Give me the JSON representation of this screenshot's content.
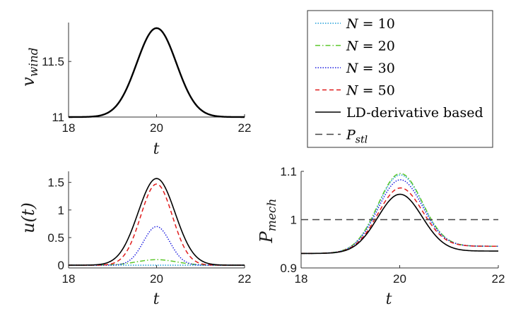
{
  "colors": {
    "n10": "#1f9ed8",
    "n20": "#5cc72a",
    "n30": "#1f1fe0",
    "n50": "#e01b1b",
    "ld": "#000000",
    "pstl": "#444444"
  },
  "legend": {
    "entries": [
      {
        "key": "n10",
        "label": "N = 10",
        "dash": "dotted"
      },
      {
        "key": "n20",
        "label": "N = 20",
        "dash": "dashdot"
      },
      {
        "key": "n30",
        "label": "N = 30",
        "dash": "dotted"
      },
      {
        "key": "n50",
        "label": "N = 50",
        "dash": "dashed"
      },
      {
        "key": "ld",
        "label": "LD-derivative based",
        "dash": "solid"
      },
      {
        "key": "pstl",
        "label": "P_stl",
        "dash": "longdash"
      }
    ]
  },
  "chart_data": [
    {
      "id": "vwind",
      "type": "line",
      "title": "",
      "xlabel": "t",
      "ylabel": "v_wind",
      "xlim": [
        18,
        22
      ],
      "ylim": [
        11,
        11.85
      ],
      "xticks": [
        18,
        20,
        22
      ],
      "yticks": [
        11,
        11.5
      ],
      "series": [
        {
          "name": "v_wind",
          "key": "ld",
          "peak": 20,
          "base": 11,
          "amp": 0.8,
          "sigma": 0.45
        }
      ]
    },
    {
      "id": "u",
      "type": "line",
      "title": "",
      "xlabel": "t",
      "ylabel": "u(t)",
      "xlim": [
        18,
        22
      ],
      "ylim": [
        -0.05,
        1.7
      ],
      "xticks": [
        18,
        20,
        22
      ],
      "yticks": [
        0,
        0.5,
        1,
        1.5
      ],
      "series": [
        {
          "name": "N = 10",
          "key": "n10",
          "peak": 20,
          "base": 0,
          "amp": 0.0,
          "sigma": 0.45
        },
        {
          "name": "N = 20",
          "key": "n20",
          "peak": 20,
          "base": 0,
          "amp": 0.1,
          "sigma": 0.45
        },
        {
          "name": "N = 30",
          "key": "n30",
          "peak": 20,
          "base": 0,
          "amp": 0.7,
          "sigma": 0.3
        },
        {
          "name": "N = 50",
          "key": "n50",
          "peak": 20,
          "base": 0,
          "amp": 1.47,
          "sigma": 0.36
        },
        {
          "name": "LD-derivative based",
          "key": "ld",
          "peak": 20,
          "base": 0,
          "amp": 1.57,
          "sigma": 0.42
        }
      ]
    },
    {
      "id": "pmech",
      "type": "line",
      "title": "",
      "xlabel": "t",
      "ylabel": "P_mech",
      "xlim": [
        18,
        22
      ],
      "ylim": [
        0.9,
        1.1
      ],
      "xticks": [
        18,
        20,
        22
      ],
      "yticks": [
        0.9,
        1,
        1.1
      ],
      "series": [
        {
          "name": "N = 10",
          "key": "n10",
          "peak": 20,
          "base": 0.93,
          "base2": 0.945,
          "amp": 0.155,
          "sigma": 0.45
        },
        {
          "name": "N = 20",
          "key": "n20",
          "peak": 20,
          "base": 0.93,
          "base2": 0.945,
          "amp": 0.158,
          "sigma": 0.45
        },
        {
          "name": "N = 30",
          "key": "n30",
          "peak": 20,
          "base": 0.93,
          "base2": 0.945,
          "amp": 0.145,
          "sigma": 0.45
        },
        {
          "name": "N = 50",
          "key": "n50",
          "peak": 20,
          "base": 0.93,
          "base2": 0.945,
          "amp": 0.128,
          "sigma": 0.45
        },
        {
          "name": "LD-derivative based",
          "key": "ld",
          "peak": 20,
          "base": 0.93,
          "base2": 0.935,
          "amp": 0.12,
          "sigma": 0.45
        },
        {
          "name": "P_stl",
          "key": "pstl",
          "constant": 1.0
        }
      ]
    }
  ]
}
